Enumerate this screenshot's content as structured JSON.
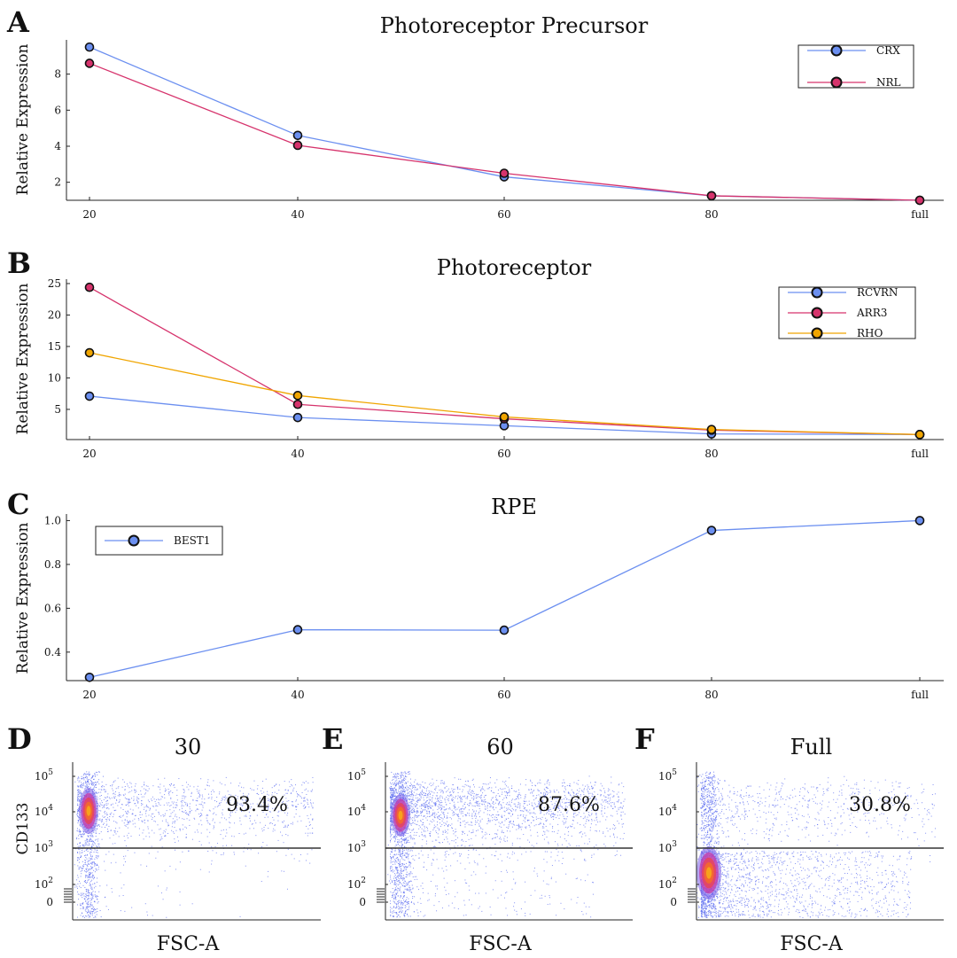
{
  "chart_data": [
    {
      "panel": "A",
      "type": "line",
      "title": "Photoreceptor Precursor",
      "xlabel": "",
      "ylabel": "Relative Expression",
      "categories": [
        "20",
        "40",
        "60",
        "80",
        "full"
      ],
      "yticks": [
        2,
        4,
        6,
        8
      ],
      "ylim": [
        1,
        9.9
      ],
      "legend_position": "top-right",
      "series": [
        {
          "name": "CRX",
          "color": "#6b8ff0",
          "values": [
            9.5,
            4.6,
            2.3,
            1.25,
            1.0
          ]
        },
        {
          "name": "NRL",
          "color": "#d6336c",
          "values": [
            8.6,
            4.05,
            2.5,
            1.25,
            1.0
          ]
        }
      ]
    },
    {
      "panel": "B",
      "type": "line",
      "title": "Photoreceptor",
      "xlabel": "",
      "ylabel": "Relative Expression",
      "categories": [
        "20",
        "40",
        "60",
        "80",
        "full"
      ],
      "yticks": [
        5,
        10,
        15,
        20,
        25
      ],
      "ylim": [
        0.2,
        25.7
      ],
      "legend_position": "top-right",
      "series": [
        {
          "name": "RCVRN",
          "color": "#6b8ff0",
          "values": [
            7.1,
            3.7,
            2.4,
            1.1,
            1.0
          ]
        },
        {
          "name": "ARR3",
          "color": "#d6336c",
          "values": [
            24.4,
            5.8,
            3.5,
            1.7,
            1.0
          ]
        },
        {
          "name": "RHO",
          "color": "#f0a500",
          "values": [
            14.0,
            7.2,
            3.8,
            1.8,
            1.0
          ]
        }
      ]
    },
    {
      "panel": "C",
      "type": "line",
      "title": "RPE",
      "xlabel": "",
      "ylabel": "Relative Expression",
      "categories": [
        "20",
        "40",
        "60",
        "80",
        "full"
      ],
      "yticks": [
        0.4,
        0.6,
        0.8,
        1.0
      ],
      "ytick_labels": [
        "0.4",
        "0.6",
        "0.8",
        "1.0"
      ],
      "ylim": [
        0.27,
        1.03
      ],
      "legend_position": "top-left",
      "series": [
        {
          "name": "BEST1",
          "color": "#6b8ff0",
          "values": [
            0.285,
            0.502,
            0.5,
            0.955,
            1.0
          ]
        }
      ]
    },
    {
      "panel": "D",
      "type": "scatter",
      "title": "30",
      "xlabel": "FSC-A",
      "ylabel": "CD133",
      "gate_value": "10^3",
      "ytick_labels": [
        "10^5",
        "10^4",
        "10^3",
        "10^2",
        "0"
      ],
      "percent_label": "93.4%",
      "percent_positive": 93.4
    },
    {
      "panel": "E",
      "type": "scatter",
      "title": "60",
      "xlabel": "FSC-A",
      "ylabel": "",
      "gate_value": "10^3",
      "ytick_labels": [
        "10^5",
        "10^4",
        "10^3",
        "10^2",
        "0"
      ],
      "percent_label": "87.6%",
      "percent_positive": 87.6
    },
    {
      "panel": "F",
      "type": "scatter",
      "title": "Full",
      "xlabel": "FSC-A",
      "ylabel": "",
      "gate_value": "10^3",
      "ytick_labels": [
        "10^5",
        "10^4",
        "10^3",
        "10^2",
        "0"
      ],
      "percent_label": "30.8%",
      "percent_positive": 30.8
    }
  ]
}
